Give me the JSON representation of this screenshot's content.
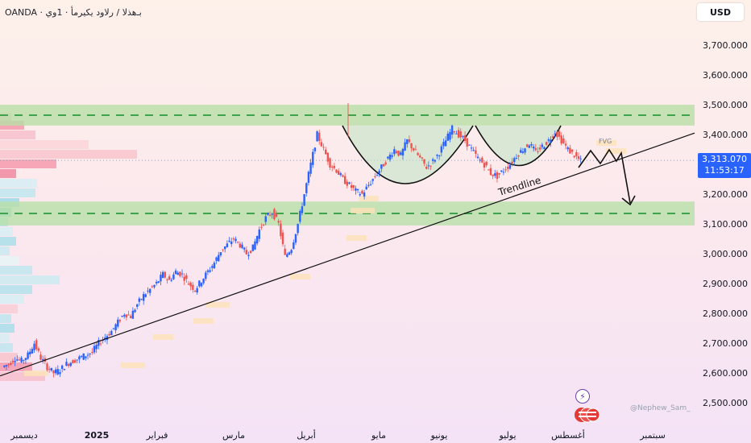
{
  "header": {
    "symbol_line": "OANDA · بـ‌هذلا / رلاود يكيرمأ · 1وي"
  },
  "toolbar": {
    "currency_label": "USD"
  },
  "price_tag": {
    "price": "3,313.070",
    "countdown": "11:53:17"
  },
  "watermark": "@Nephew_Sam_",
  "icons": {
    "flash": "flash-icon",
    "flag": "us-flag-icon"
  },
  "colors": {
    "up_candle": "#2962ff",
    "down_candle": "#ef5350",
    "zone_fill": "#b8e0a8",
    "zone_dash": "#3fa34d",
    "trendline": "#111111",
    "price_tag": "#2962ff"
  },
  "chart_data": {
    "type": "candlestick",
    "x_axis_labels": [
      "ديسمبر",
      "2025",
      "فبراير",
      "مارس",
      "أبريل",
      "مايو",
      "يونيو",
      "يوليو",
      "أغسطس",
      "سبتمبر"
    ],
    "y_axis_ticks": [
      "3,700.000",
      "3,600.000",
      "3,500.000",
      "3,400.000",
      "3,300.000",
      "3,200.000",
      "3,100.000",
      "3,000.000",
      "2,900.000",
      "2,800.000",
      "2,700.000",
      "2,600.000",
      "2,500.000"
    ],
    "y_tick_values": [
      3700,
      3600,
      3500,
      3400,
      3300,
      3200,
      3100,
      3000,
      2900,
      2800,
      2700,
      2600,
      2500
    ],
    "ylim": [
      2480,
      3760
    ],
    "current_price": 3313.07,
    "zones": [
      {
        "low": 3430,
        "high": 3500,
        "level": 3465
      },
      {
        "low": 3095,
        "high": 3175,
        "level": 3135
      }
    ],
    "trendline": {
      "start_price": 2590,
      "end_price": 3405
    },
    "annotations": {
      "trendline_label": "Trendline",
      "fvg_label": "FVG"
    },
    "price_path": [
      2620,
      2630,
      2650,
      2640,
      2660,
      2700,
      2650,
      2620,
      2600,
      2610,
      2630,
      2640,
      2650,
      2660,
      2670,
      2700,
      2720,
      2740,
      2770,
      2800,
      2790,
      2830,
      2860,
      2880,
      2900,
      2930,
      2910,
      2940,
      2930,
      2900,
      2880,
      2910,
      2940,
      2970,
      3010,
      3030,
      3050,
      3030,
      3000,
      3020,
      3080,
      3120,
      3140,
      3100,
      2990,
      3020,
      3100,
      3200,
      3300,
      3400,
      3350,
      3300,
      3280,
      3250,
      3230,
      3210,
      3200,
      3230,
      3260,
      3290,
      3320,
      3350,
      3330,
      3380,
      3350,
      3320,
      3290,
      3310,
      3340,
      3380,
      3420,
      3400,
      3380,
      3350,
      3320,
      3300,
      3270,
      3260,
      3280,
      3300,
      3330,
      3350,
      3370,
      3340,
      3360,
      3380,
      3410,
      3380,
      3350,
      3330,
      3310
    ]
  }
}
